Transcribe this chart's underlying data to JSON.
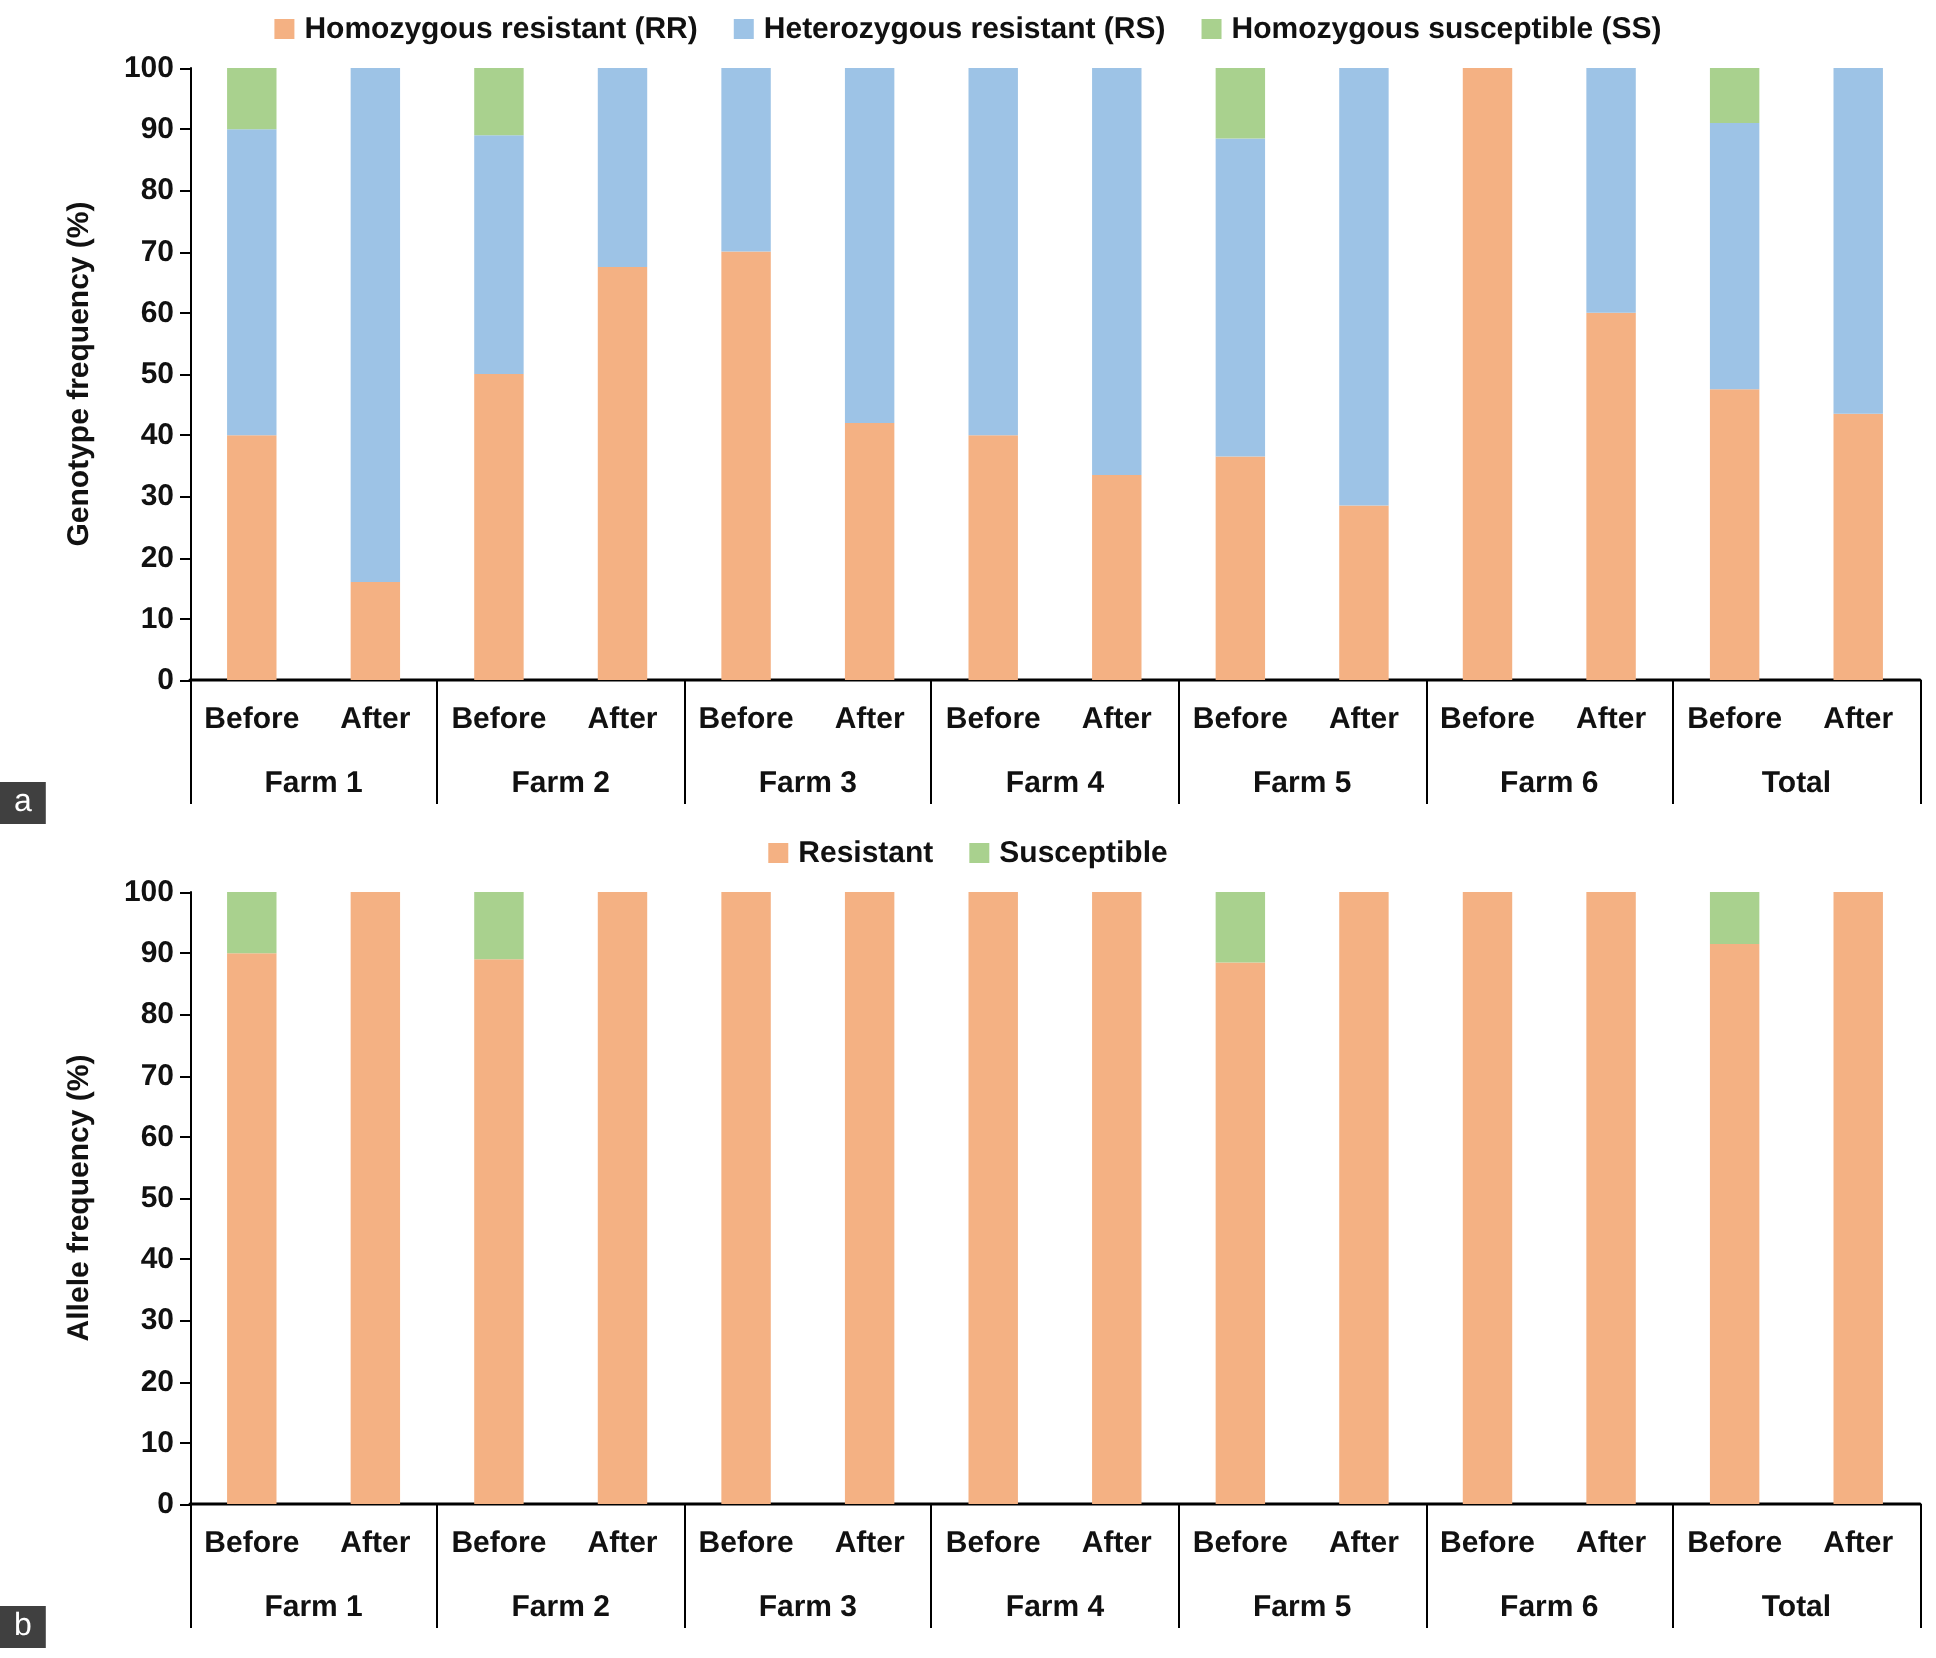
{
  "chart_data": [
    {
      "type": "bar",
      "stacked": true,
      "ylabel": "Genotype frequency (%)",
      "categories": [
        "Before",
        "After",
        "Before",
        "After",
        "Before",
        "After",
        "Before",
        "After",
        "Before",
        "After",
        "Before",
        "After",
        "Before",
        "After"
      ],
      "series": [
        {
          "name": "Homozygous resistant (RR)",
          "color": "#f4b183",
          "values": [
            40,
            16,
            50,
            67.5,
            70,
            42,
            40,
            33.5,
            36.5,
            28.5,
            100,
            60,
            47.5,
            43.5
          ]
        },
        {
          "name": "Heterozygous resistant (RS)",
          "color": "#9dc3e6",
          "values": [
            50,
            84,
            39,
            32.5,
            30,
            58,
            60,
            66.5,
            52,
            71.5,
            0,
            40,
            43.5,
            56.5
          ]
        },
        {
          "name": "Homozygous susceptible (SS)",
          "color": "#a9d18e",
          "values": [
            10,
            0,
            11,
            0,
            0,
            0,
            0,
            0,
            11.5,
            0,
            0,
            0,
            9,
            0
          ]
        }
      ],
      "ylim": [
        0,
        100
      ],
      "yticks": [
        0,
        10,
        20,
        30,
        40,
        50,
        60,
        70,
        80,
        90,
        100
      ],
      "grid": false,
      "legend": "top",
      "annotations": [
        "a",
        "Farm 1",
        "Farm 2",
        "Farm 3",
        "Farm 4",
        "Farm 5",
        "Farm 6",
        "Total"
      ]
    },
    {
      "type": "bar",
      "stacked": true,
      "ylabel": "Allele frequency (%)",
      "categories": [
        "Before",
        "After",
        "Before",
        "After",
        "Before",
        "After",
        "Before",
        "After",
        "Before",
        "After",
        "Before",
        "After",
        "Before",
        "After"
      ],
      "series": [
        {
          "name": "Resistant",
          "color": "#f4b183",
          "values": [
            90,
            100,
            89,
            100,
            100,
            100,
            100,
            100,
            88.5,
            100,
            100,
            100,
            91.5,
            100
          ]
        },
        {
          "name": "Susceptible",
          "color": "#a9d18e",
          "values": [
            10,
            0,
            11,
            0,
            0,
            0,
            0,
            0,
            11.5,
            0,
            0,
            0,
            8.5,
            0
          ]
        }
      ],
      "ylim": [
        0,
        100
      ],
      "yticks": [
        0,
        10,
        20,
        30,
        40,
        50,
        60,
        70,
        80,
        90,
        100
      ],
      "grid": false,
      "legend": "top",
      "annotations": [
        "b",
        "Farm 1",
        "Farm 2",
        "Farm 3",
        "Farm 4",
        "Farm 5",
        "Farm 6",
        "Total"
      ]
    }
  ]
}
